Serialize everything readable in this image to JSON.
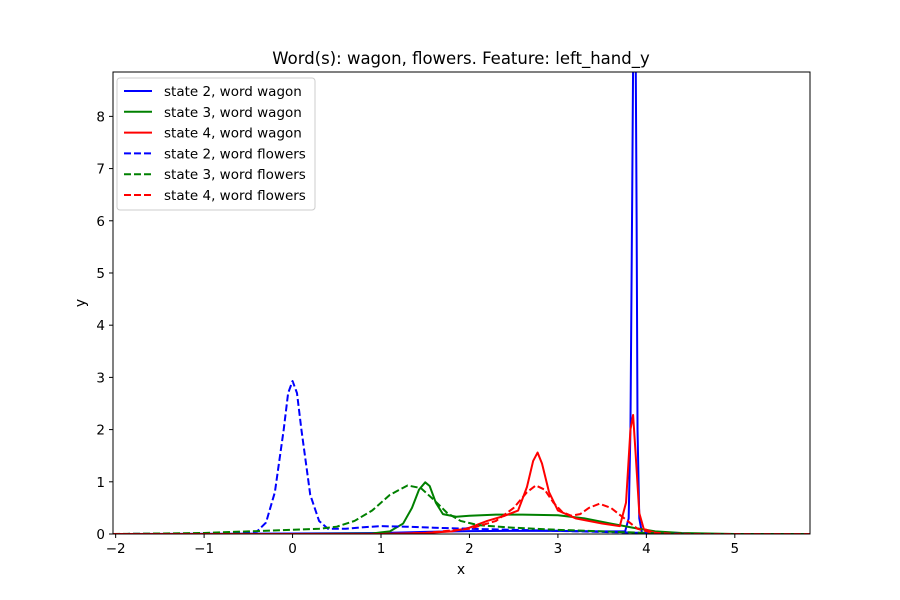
{
  "chart_data": {
    "type": "line",
    "title": "Word(s): wagon, flowers. Feature: left_hand_y",
    "xlabel": "x",
    "ylabel": "y",
    "xlim": [
      -2.03,
      5.85
    ],
    "ylim": [
      0,
      8.85
    ],
    "xticks": [
      -2,
      -1,
      0,
      1,
      2,
      3,
      4,
      5
    ],
    "yticks": [
      0,
      1,
      2,
      3,
      4,
      5,
      6,
      7,
      8
    ],
    "xtick_labels": [
      "−2",
      "−1",
      "0",
      "1",
      "2",
      "3",
      "4",
      "5"
    ],
    "ytick_labels": [
      "0",
      "1",
      "2",
      "3",
      "4",
      "5",
      "6",
      "7",
      "8"
    ],
    "grid": false,
    "legend_position": "upper left",
    "series": [
      {
        "name": "state 2, word wagon",
        "color": "#0000ff",
        "dash": "solid",
        "points": [
          [
            -2.03,
            0.0
          ],
          [
            0.0,
            0.01
          ],
          [
            1.0,
            0.02
          ],
          [
            1.5,
            0.04
          ],
          [
            2.0,
            0.055
          ],
          [
            2.5,
            0.06
          ],
          [
            3.0,
            0.06
          ],
          [
            3.5,
            0.05
          ],
          [
            3.76,
            0.05
          ],
          [
            3.8,
            0.3
          ],
          [
            3.82,
            2.0
          ],
          [
            3.84,
            6.5
          ],
          [
            3.85,
            9.0
          ],
          [
            3.88,
            9.0
          ],
          [
            3.89,
            6.0
          ],
          [
            3.9,
            2.0
          ],
          [
            3.92,
            0.3
          ],
          [
            3.95,
            0.02
          ],
          [
            4.2,
            0.0
          ],
          [
            5.85,
            0.0
          ]
        ]
      },
      {
        "name": "state 3, word wagon",
        "color": "#008000",
        "dash": "solid",
        "points": [
          [
            -2.03,
            0.0
          ],
          [
            0.0,
            0.0
          ],
          [
            0.9,
            0.01
          ],
          [
            1.1,
            0.05
          ],
          [
            1.25,
            0.2
          ],
          [
            1.35,
            0.5
          ],
          [
            1.43,
            0.85
          ],
          [
            1.5,
            0.99
          ],
          [
            1.55,
            0.92
          ],
          [
            1.62,
            0.6
          ],
          [
            1.7,
            0.38
          ],
          [
            1.85,
            0.33
          ],
          [
            2.0,
            0.35
          ],
          [
            2.3,
            0.37
          ],
          [
            2.6,
            0.37
          ],
          [
            3.0,
            0.36
          ],
          [
            3.3,
            0.3
          ],
          [
            3.6,
            0.2
          ],
          [
            3.85,
            0.12
          ],
          [
            4.1,
            0.05
          ],
          [
            4.4,
            0.02
          ],
          [
            5.0,
            0.0
          ],
          [
            5.85,
            0.0
          ]
        ]
      },
      {
        "name": "state 4, word wagon",
        "color": "#ff0000",
        "dash": "solid",
        "points": [
          [
            -2.03,
            0.0
          ],
          [
            1.0,
            0.0
          ],
          [
            1.5,
            0.02
          ],
          [
            1.8,
            0.05
          ],
          [
            2.0,
            0.12
          ],
          [
            2.2,
            0.25
          ],
          [
            2.4,
            0.35
          ],
          [
            2.55,
            0.45
          ],
          [
            2.65,
            0.9
          ],
          [
            2.72,
            1.4
          ],
          [
            2.77,
            1.56
          ],
          [
            2.82,
            1.35
          ],
          [
            2.9,
            0.8
          ],
          [
            3.0,
            0.45
          ],
          [
            3.2,
            0.3
          ],
          [
            3.5,
            0.2
          ],
          [
            3.7,
            0.15
          ],
          [
            3.77,
            0.6
          ],
          [
            3.82,
            2.0
          ],
          [
            3.85,
            2.28
          ],
          [
            3.88,
            1.5
          ],
          [
            3.92,
            0.4
          ],
          [
            3.97,
            0.1
          ],
          [
            4.1,
            0.02
          ],
          [
            4.5,
            0.0
          ],
          [
            5.85,
            0.0
          ]
        ]
      },
      {
        "name": "state 2, word flowers",
        "color": "#0000ff",
        "dash": "dashed",
        "points": [
          [
            -2.03,
            0.0
          ],
          [
            -0.6,
            0.01
          ],
          [
            -0.4,
            0.05
          ],
          [
            -0.3,
            0.22
          ],
          [
            -0.2,
            0.8
          ],
          [
            -0.1,
            2.0
          ],
          [
            -0.05,
            2.7
          ],
          [
            0.0,
            2.93
          ],
          [
            0.05,
            2.7
          ],
          [
            0.1,
            2.0
          ],
          [
            0.2,
            0.75
          ],
          [
            0.3,
            0.25
          ],
          [
            0.4,
            0.1
          ],
          [
            0.6,
            0.1
          ],
          [
            0.8,
            0.13
          ],
          [
            1.0,
            0.15
          ],
          [
            1.3,
            0.14
          ],
          [
            1.6,
            0.12
          ],
          [
            2.0,
            0.1
          ],
          [
            2.5,
            0.08
          ],
          [
            3.0,
            0.06
          ],
          [
            3.5,
            0.04
          ],
          [
            4.0,
            0.02
          ],
          [
            4.5,
            0.0
          ],
          [
            5.85,
            0.0
          ]
        ]
      },
      {
        "name": "state 3, word flowers",
        "color": "#008000",
        "dash": "dashed",
        "points": [
          [
            -2.03,
            0.0
          ],
          [
            -1.5,
            0.01
          ],
          [
            -1.0,
            0.02
          ],
          [
            -0.5,
            0.05
          ],
          [
            0.0,
            0.08
          ],
          [
            0.3,
            0.1
          ],
          [
            0.5,
            0.14
          ],
          [
            0.7,
            0.25
          ],
          [
            0.9,
            0.45
          ],
          [
            1.1,
            0.75
          ],
          [
            1.3,
            0.93
          ],
          [
            1.45,
            0.88
          ],
          [
            1.6,
            0.65
          ],
          [
            1.75,
            0.4
          ],
          [
            1.9,
            0.25
          ],
          [
            2.1,
            0.17
          ],
          [
            2.5,
            0.12
          ],
          [
            3.0,
            0.08
          ],
          [
            3.5,
            0.05
          ],
          [
            4.0,
            0.02
          ],
          [
            4.5,
            0.0
          ],
          [
            5.85,
            0.0
          ]
        ]
      },
      {
        "name": "state 4, word flowers",
        "color": "#ff0000",
        "dash": "dashed",
        "points": [
          [
            -2.03,
            0.0
          ],
          [
            1.0,
            0.0
          ],
          [
            1.5,
            0.02
          ],
          [
            2.0,
            0.1
          ],
          [
            2.3,
            0.25
          ],
          [
            2.5,
            0.5
          ],
          [
            2.65,
            0.8
          ],
          [
            2.75,
            0.93
          ],
          [
            2.85,
            0.85
          ],
          [
            2.95,
            0.6
          ],
          [
            3.05,
            0.42
          ],
          [
            3.15,
            0.35
          ],
          [
            3.25,
            0.38
          ],
          [
            3.35,
            0.5
          ],
          [
            3.47,
            0.58
          ],
          [
            3.6,
            0.5
          ],
          [
            3.75,
            0.3
          ],
          [
            3.9,
            0.1
          ],
          [
            4.05,
            0.03
          ],
          [
            4.3,
            0.0
          ],
          [
            5.85,
            0.0
          ]
        ]
      }
    ]
  }
}
